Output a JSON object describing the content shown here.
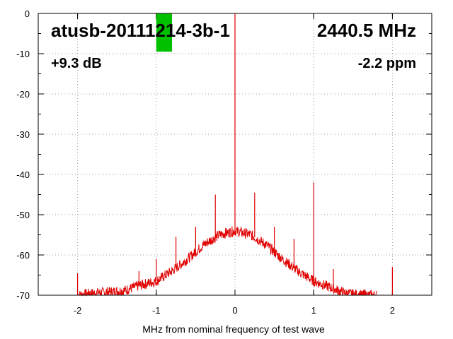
{
  "chart_data": {
    "type": "line",
    "xlabel": "MHz from nominal frequency of test wave",
    "ylabel": "",
    "xlim": [
      -2.5,
      2.5
    ],
    "ylim": [
      -70,
      0
    ],
    "x_ticks": [
      -2,
      -1,
      0,
      1,
      2
    ],
    "y_ticks": [
      0,
      -10,
      -20,
      -30,
      -40,
      -50,
      -60,
      -70
    ],
    "grid": true,
    "annotations": {
      "device": "atusb-20111214-3b-1",
      "frequency": "2440.5 MHz",
      "gain": "+9.3 dB",
      "offset": "-2.2 ppm"
    },
    "indicator": {
      "color": "#00c000",
      "x_center": -0.9,
      "x_width": 0.2,
      "y_top": 0,
      "y_bottom": -9.5
    },
    "series_color": "#e00000",
    "noise_floor": {
      "x": [
        -2.0,
        -1.8,
        -1.6,
        -1.4,
        -1.2,
        -1.0,
        -0.8,
        -0.6,
        -0.4,
        -0.2,
        0.0,
        0.2,
        0.4,
        0.6,
        0.8,
        1.0,
        1.2,
        1.4,
        1.6,
        1.8
      ],
      "y": [
        -70,
        -69.5,
        -69.2,
        -68.8,
        -67.5,
        -66.5,
        -64,
        -61,
        -57.5,
        -55,
        -54,
        -55,
        -57.5,
        -61,
        -64,
        -66.5,
        -68,
        -69.5,
        -70,
        -70
      ]
    },
    "spurs": {
      "x": [
        0.0,
        -2.0,
        -1.85,
        -1.7,
        -1.6,
        -1.55,
        -1.45,
        -1.22,
        -1.0,
        -0.75,
        -0.5,
        -0.25,
        0.25,
        0.5,
        0.75,
        1.0,
        1.25,
        1.62,
        1.65,
        2.0
      ],
      "y": [
        0,
        -64.5,
        -69,
        -69,
        -69,
        -69,
        -69,
        -64,
        -61,
        -55.5,
        -53,
        -45,
        -44.5,
        -53,
        -56,
        -42,
        -63.5,
        -69,
        -68.5,
        -63
      ]
    }
  }
}
